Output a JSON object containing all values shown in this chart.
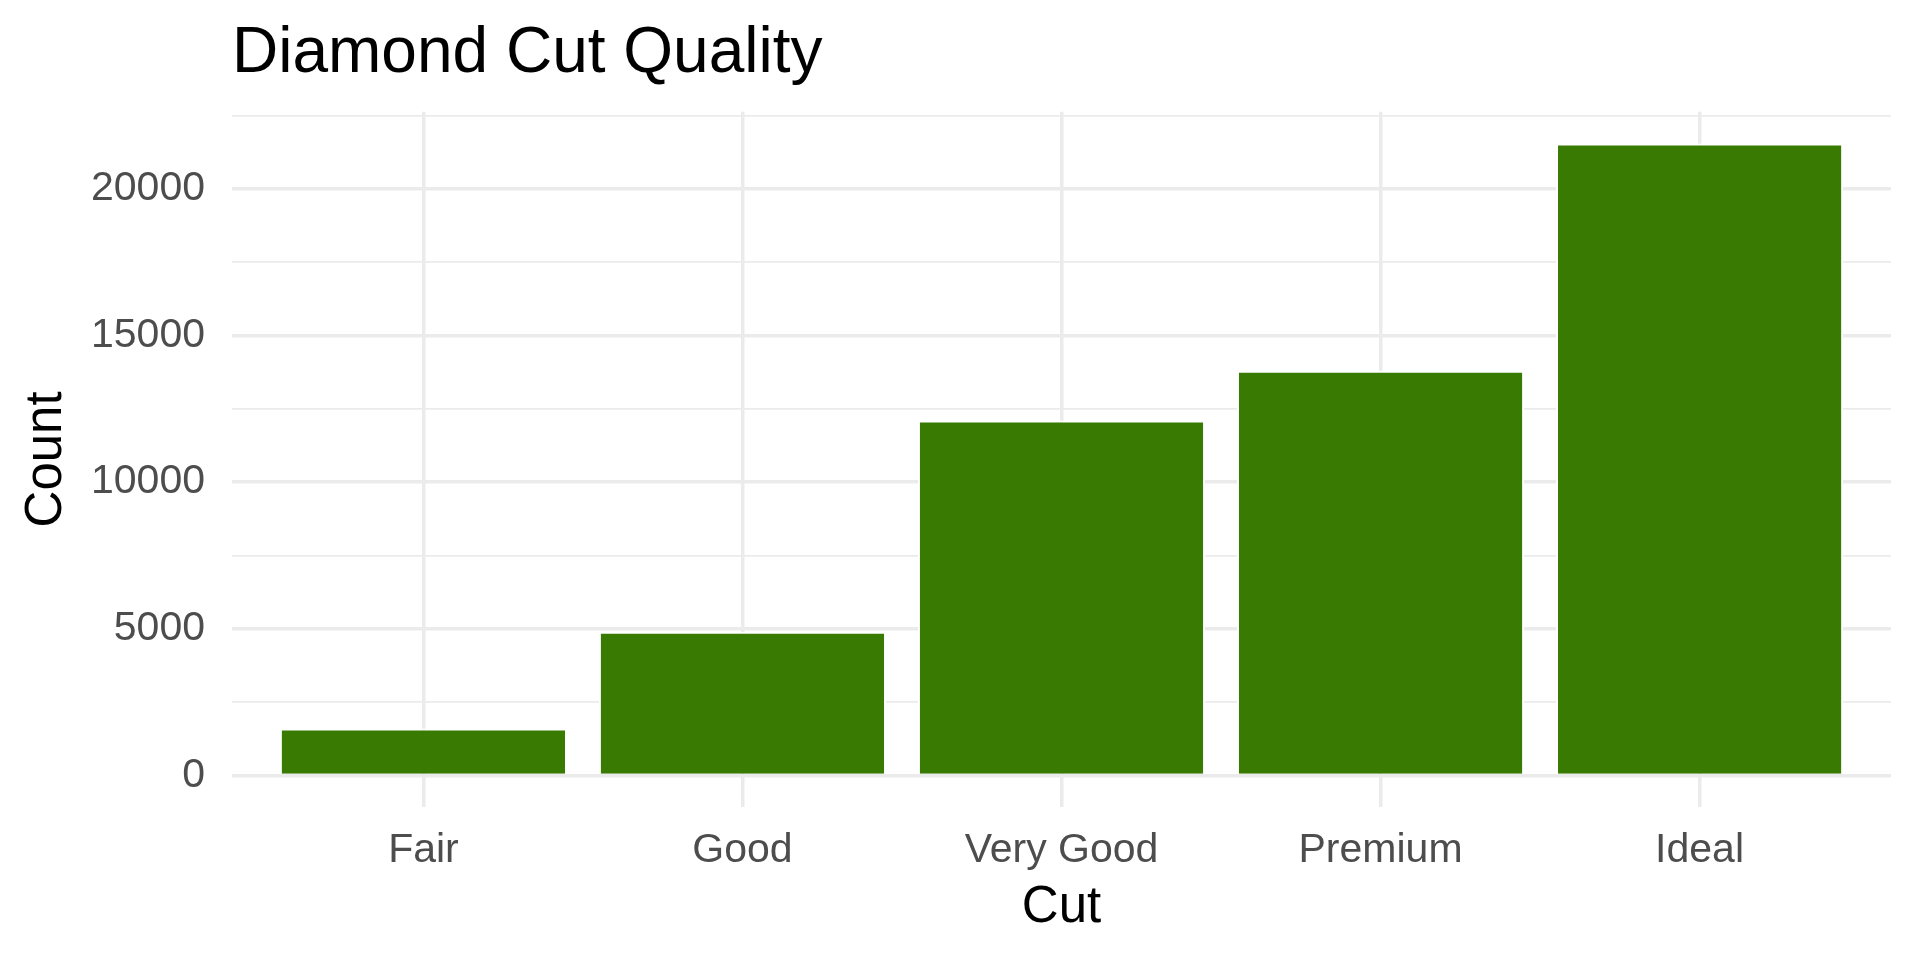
{
  "chart_data": {
    "type": "bar",
    "title": "Diamond Cut Quality",
    "xlabel": "Cut",
    "ylabel": "Count",
    "categories": [
      "Fair",
      "Good",
      "Very Good",
      "Premium",
      "Ideal"
    ],
    "values": [
      1600,
      4900,
      12100,
      13800,
      21550
    ],
    "color": "#387a02",
    "ylim": [
      -1078,
      22629
    ],
    "yticks": [
      0,
      {
        "value": 2500,
        "label": null
      },
      5000,
      {
        "value": 7500,
        "label": null
      },
      10000,
      {
        "value": 12500,
        "label": null
      },
      15000,
      {
        "value": 17500,
        "label": null
      },
      20000,
      {
        "value": 22500,
        "label": null
      }
    ],
    "grid": true
  }
}
